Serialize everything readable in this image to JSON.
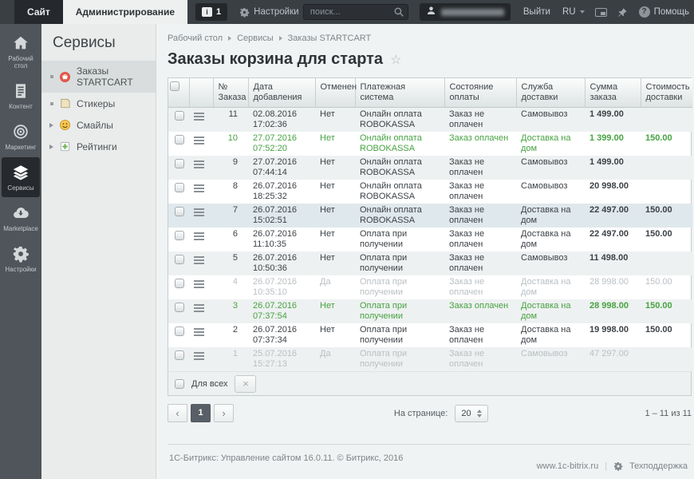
{
  "topbar": {
    "site_tab": "Сайт",
    "admin_tab": "Администрирование",
    "notification_count": "1",
    "settings_label": "Настройки",
    "search_placeholder": "поиск...",
    "logout_label": "Выйти",
    "lang_label": "RU",
    "help_label": "Помощь"
  },
  "sidebar": {
    "items": [
      {
        "name": "desktop",
        "label": "Рабочий стол",
        "icon": "home-icon",
        "active": false
      },
      {
        "name": "content",
        "label": "Контент",
        "icon": "document-icon",
        "active": false
      },
      {
        "name": "marketing",
        "label": "Маркетинг",
        "icon": "target-icon",
        "active": false
      },
      {
        "name": "services",
        "label": "Сервисы",
        "icon": "layers-icon",
        "active": true
      },
      {
        "name": "marketplace",
        "label": "Marketplace",
        "icon": "cloud-download-icon",
        "active": false
      },
      {
        "name": "settings",
        "label": "Настройки",
        "icon": "gear-icon",
        "active": false
      }
    ]
  },
  "services_menu": {
    "title": "Сервисы",
    "items": [
      {
        "name": "orders-startcart",
        "label": "Заказы STARTCART",
        "icon": "orders-icon",
        "selected": true,
        "expandable": false
      },
      {
        "name": "stickers",
        "label": "Стикеры",
        "icon": "sticker-icon",
        "selected": false,
        "expandable": false
      },
      {
        "name": "smiles",
        "label": "Смайлы",
        "icon": "smiley-icon",
        "selected": false,
        "expandable": true
      },
      {
        "name": "ratings",
        "label": "Рейтинги",
        "icon": "rating-icon",
        "selected": false,
        "expandable": true
      }
    ]
  },
  "content": {
    "breadcrumb": [
      "Рабочий стол",
      "Сервисы",
      "Заказы STARTCART"
    ],
    "title": "Заказы корзина для старта",
    "table": {
      "columns": [
        "№ Заказа",
        "Дата добавления",
        "Отменен",
        "Платежная система",
        "Состояние оплаты",
        "Служба доставки",
        "Сумма заказа",
        "Стоимость доставки"
      ],
      "rows": [
        {
          "id": "11",
          "date": "02.08.2016",
          "time": "17:02:36",
          "canceled": "Нет",
          "payment": "Онлайн оплата ROBOKASSA",
          "status": "Заказ не оплачен",
          "delivery": "Самовывоз",
          "sum": "1 499.00",
          "delivery_cost": "",
          "state": "normal"
        },
        {
          "id": "10",
          "date": "27.07.2016",
          "time": "07:52:20",
          "canceled": "Нет",
          "payment": "Онлайн оплата ROBOKASSA",
          "status": "Заказ оплачен",
          "delivery": "Доставка на дом",
          "sum": "1 399.00",
          "delivery_cost": "150.00",
          "state": "paid"
        },
        {
          "id": "9",
          "date": "27.07.2016",
          "time": "07:44:14",
          "canceled": "Нет",
          "payment": "Онлайн оплата ROBOKASSA",
          "status": "Заказ не оплачен",
          "delivery": "Самовывоз",
          "sum": "1 499.00",
          "delivery_cost": "",
          "state": "normal"
        },
        {
          "id": "8",
          "date": "26.07.2016",
          "time": "18:25:32",
          "canceled": "Нет",
          "payment": "Онлайн оплата ROBOKASSA",
          "status": "Заказ не оплачен",
          "delivery": "Самовывоз",
          "sum": "20 998.00",
          "delivery_cost": "",
          "state": "normal"
        },
        {
          "id": "7",
          "date": "26.07.2016",
          "time": "15:02:51",
          "canceled": "Нет",
          "payment": "Онлайн оплата ROBOKASSA",
          "status": "Заказ не оплачен",
          "delivery": "Доставка на дом",
          "sum": "22 497.00",
          "delivery_cost": "150.00",
          "state": "highlight"
        },
        {
          "id": "6",
          "date": "26.07.2016",
          "time": "11:10:35",
          "canceled": "Нет",
          "payment": "Оплата при получении",
          "status": "Заказ не оплачен",
          "delivery": "Доставка на дом",
          "sum": "22 497.00",
          "delivery_cost": "150.00",
          "state": "normal"
        },
        {
          "id": "5",
          "date": "26.07.2016",
          "time": "10:50:36",
          "canceled": "Нет",
          "payment": "Оплата при получении",
          "status": "Заказ не оплачен",
          "delivery": "Самовывоз",
          "sum": "11 498.00",
          "delivery_cost": "",
          "state": "normal"
        },
        {
          "id": "4",
          "date": "26.07.2016",
          "time": "10:35:10",
          "canceled": "Да",
          "payment": "Оплата при получении",
          "status": "Заказ не оплачен",
          "delivery": "Доставка на дом",
          "sum": "28 998.00",
          "delivery_cost": "150.00",
          "state": "canceled"
        },
        {
          "id": "3",
          "date": "26.07.2016",
          "time": "07:37:54",
          "canceled": "Нет",
          "payment": "Оплата при получении",
          "status": "Заказ оплачен",
          "delivery": "Доставка на дом",
          "sum": "28 998.00",
          "delivery_cost": "150.00",
          "state": "paid"
        },
        {
          "id": "2",
          "date": "26.07.2016",
          "time": "07:37:34",
          "canceled": "Нет",
          "payment": "Оплата при получении",
          "status": "Заказ не оплачен",
          "delivery": "Доставка на дом",
          "sum": "19 998.00",
          "delivery_cost": "150.00",
          "state": "normal"
        },
        {
          "id": "1",
          "date": "25.07.2016",
          "time": "15:27:13",
          "canceled": "Да",
          "payment": "Оплата при получении",
          "status": "Заказ не оплачен",
          "delivery": "Самовывоз",
          "sum": "47 297.00",
          "delivery_cost": "",
          "state": "canceled"
        }
      ],
      "for_all_label": "Для всех",
      "close_button_label": "×"
    },
    "pagination": {
      "prev_label": "‹",
      "current_page": "1",
      "next_label": "›",
      "per_page_label": "На странице:",
      "per_page_value": "20",
      "range_label": "1 – 11 из 11"
    }
  },
  "footer": {
    "copyright": "1С-Битрикс: Управление сайтом 16.0.11. © Битрикс, 2016",
    "site_link": "www.1c-bitrix.ru",
    "support_label": "Техподдержка"
  },
  "colors": {
    "accent_green": "#47a342",
    "canceled_gray": "#b9bfc3",
    "row_highlight": "#dfe8ec",
    "orders_icon_red": "#e2574c",
    "topbar_bg": "#3a3f44",
    "sidebar_bg": "#4f555b",
    "panel_bg": "#e9eceb",
    "content_bg": "#f0f3f3"
  }
}
